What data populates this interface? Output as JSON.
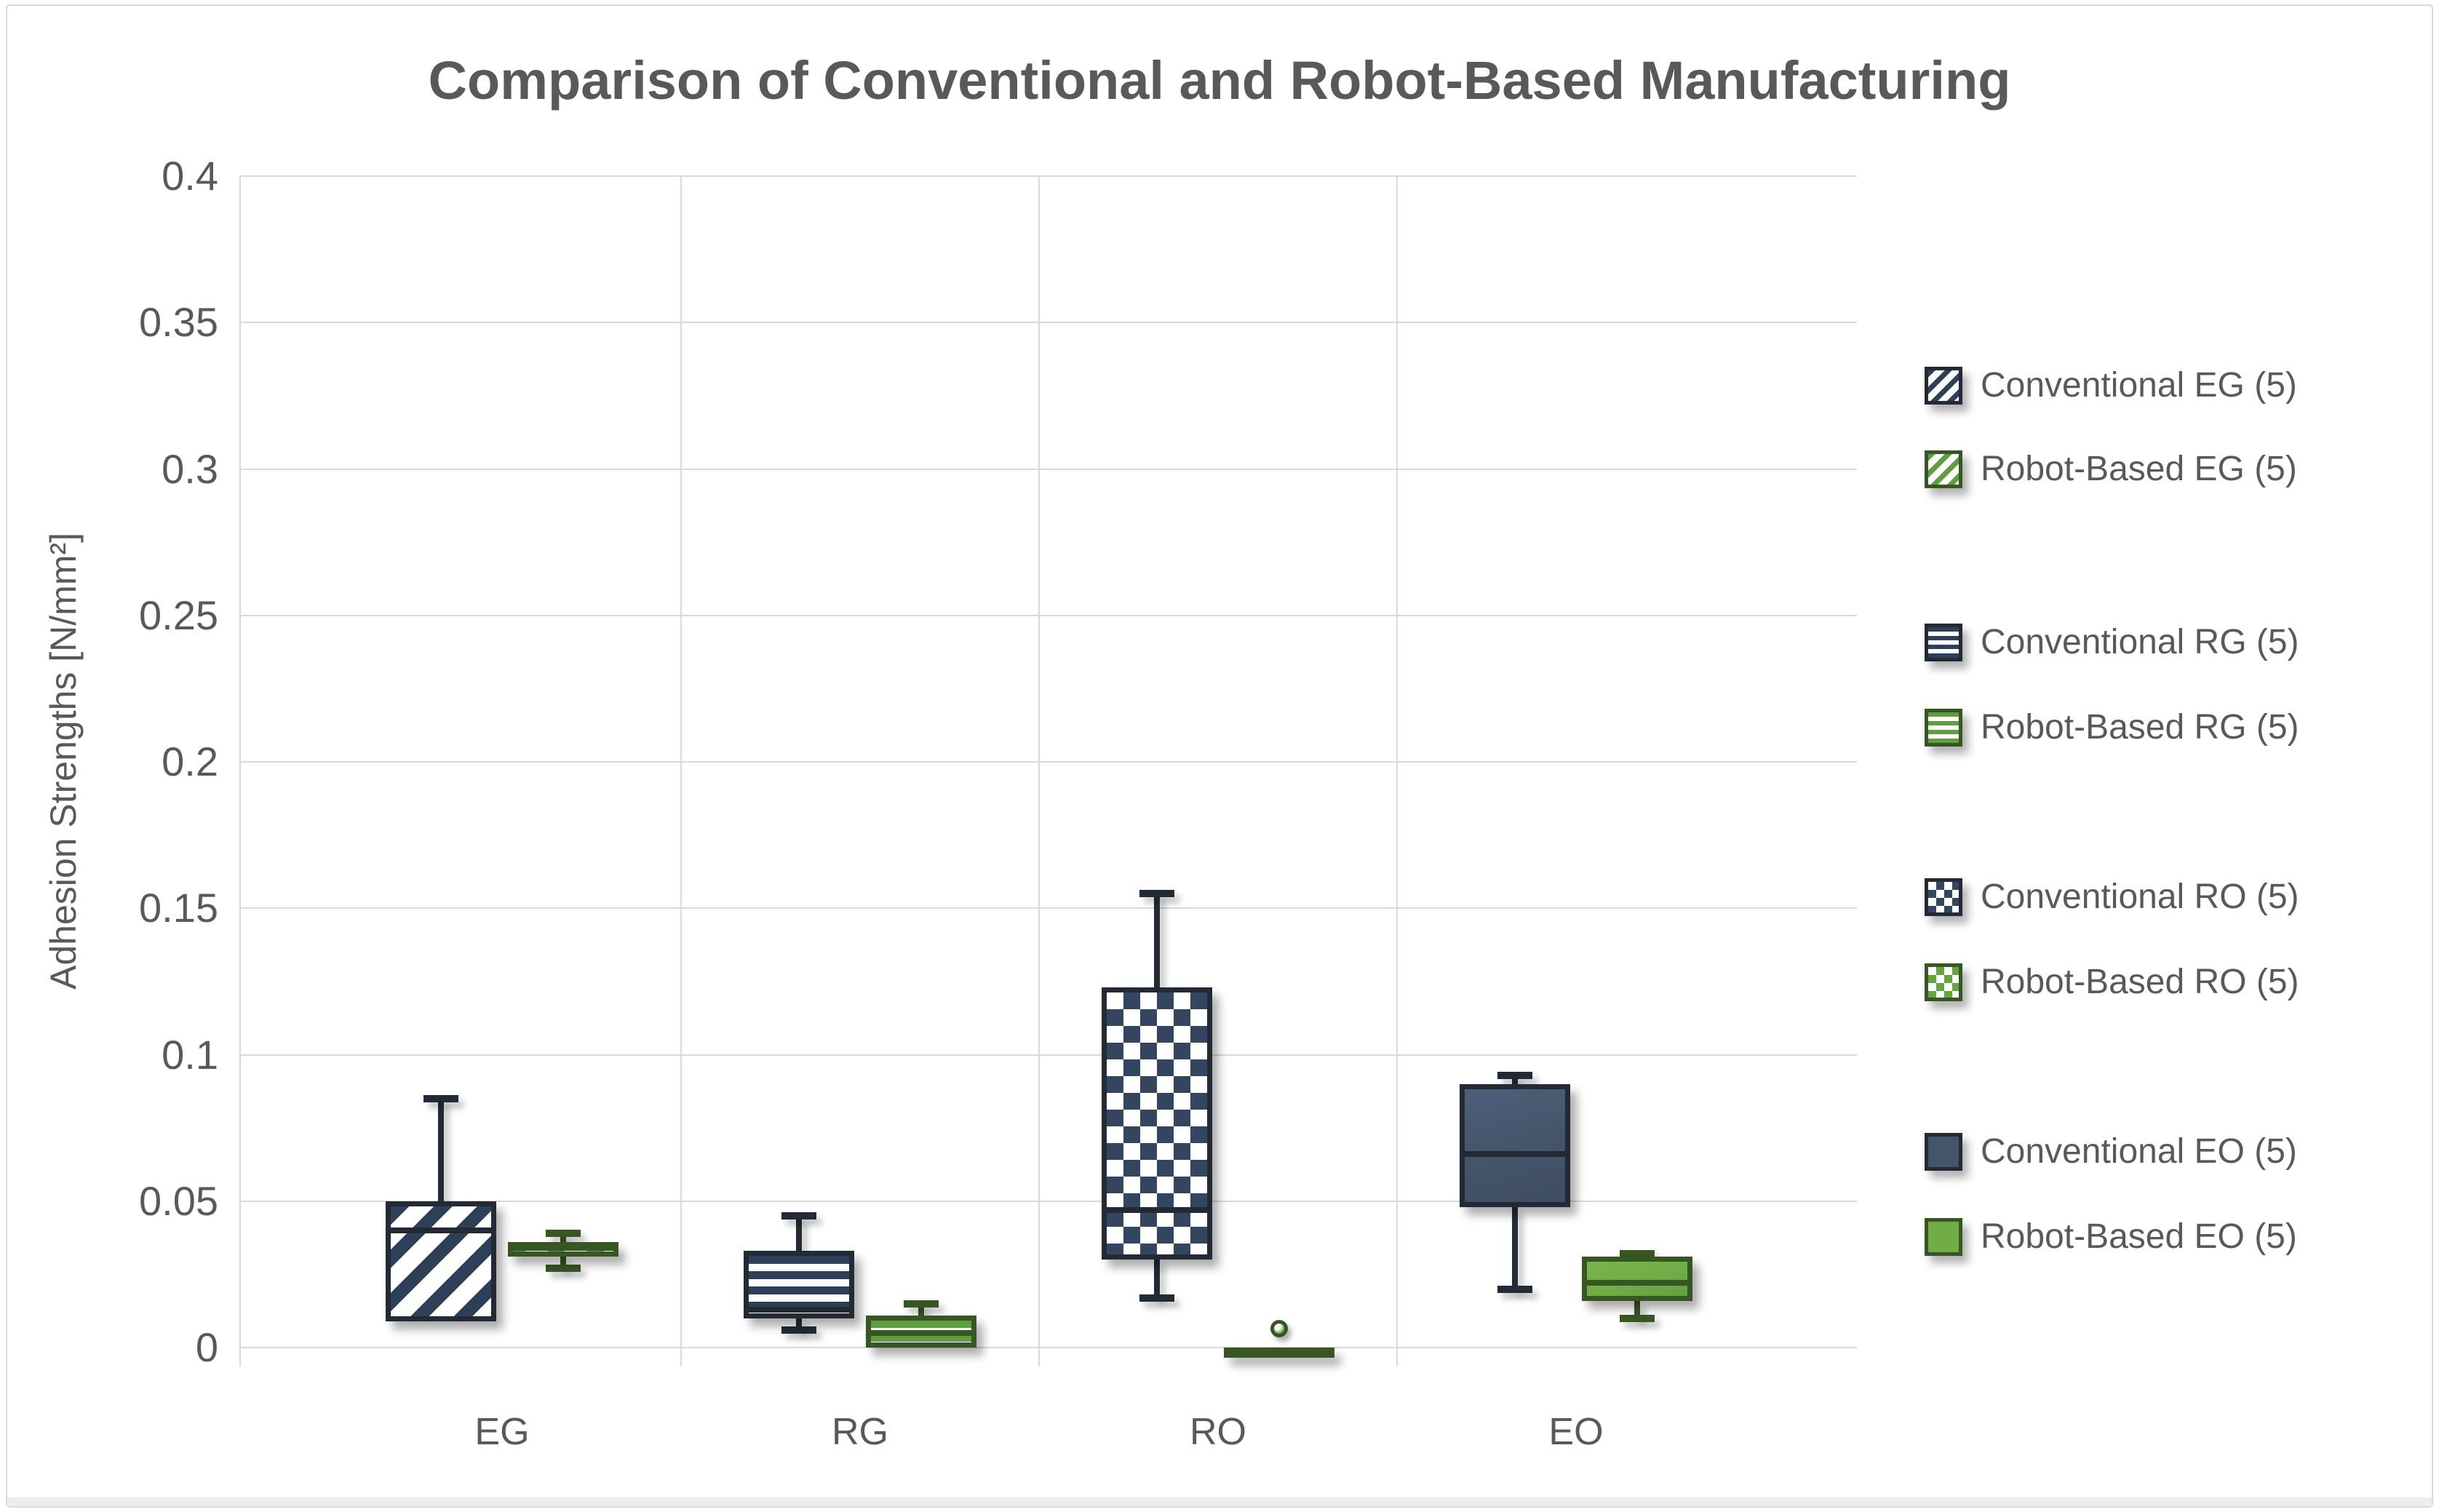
{
  "chart_data": {
    "type": "box",
    "title": "Comparison of Conventional and Robot-Based Manufacturing",
    "ylabel": "Adhesion Strengths [N/mm²]",
    "xlabel": "",
    "ylim": [
      0,
      0.4
    ],
    "ytick_step": 0.05,
    "ytick_labels": [
      "0",
      "0.05",
      "0.1",
      "0.15",
      "0.2",
      "0.25",
      "0.3",
      "0.35",
      "0.4"
    ],
    "grid": true,
    "legend_position": "right",
    "categories": [
      "EG",
      "RG",
      "RO",
      "EO"
    ],
    "series": [
      {
        "name": "Conventional EG (5)",
        "category": "EG",
        "variant": "conventional",
        "pattern": "diagonal",
        "color_key": "navy",
        "min": 0.009,
        "q1": 0.009,
        "median": 0.04,
        "q3": 0.05,
        "max": 0.085,
        "outliers": []
      },
      {
        "name": "Robot-Based EG (5)",
        "category": "EG",
        "variant": "robot",
        "pattern": "diagonal",
        "color_key": "green",
        "min": 0.027,
        "q1": 0.031,
        "median": 0.034,
        "q3": 0.036,
        "max": 0.039,
        "outliers": []
      },
      {
        "name": "Conventional RG (5)",
        "category": "RG",
        "variant": "conventional",
        "pattern": "horizontal",
        "color_key": "navy",
        "min": 0.006,
        "q1": 0.01,
        "median": 0.013,
        "q3": 0.033,
        "max": 0.045,
        "outliers": []
      },
      {
        "name": "Robot-Based RG (5)",
        "category": "RG",
        "variant": "robot",
        "pattern": "horizontal",
        "color_key": "green",
        "min": 0.0,
        "q1": 0.0,
        "median": 0.005,
        "q3": 0.011,
        "max": 0.015,
        "outliers": []
      },
      {
        "name": "Conventional RO (5)",
        "category": "RO",
        "variant": "conventional",
        "pattern": "checker",
        "color_key": "navy",
        "min": 0.017,
        "q1": 0.03,
        "median": 0.047,
        "q3": 0.123,
        "max": 0.155,
        "outliers": []
      },
      {
        "name": "Robot-Based RO (5)",
        "category": "RO",
        "variant": "robot",
        "pattern": "checker",
        "color_key": "green",
        "min": 0.0,
        "q1": 0.0,
        "median": 0.0,
        "q3": 0.0,
        "max": 0.0,
        "outliers": [
          0.0065
        ]
      },
      {
        "name": "Conventional EO (5)",
        "category": "EO",
        "variant": "conventional",
        "pattern": "solid",
        "color_key": "navy",
        "min": 0.02,
        "q1": 0.048,
        "median": 0.066,
        "q3": 0.09,
        "max": 0.093,
        "outliers": []
      },
      {
        "name": "Robot-Based EO (5)",
        "category": "EO",
        "variant": "robot",
        "pattern": "solid",
        "color_key": "green",
        "min": 0.01,
        "q1": 0.016,
        "median": 0.022,
        "q3": 0.031,
        "max": 0.032,
        "outliers": []
      }
    ],
    "colors": {
      "navy_fill": "#44546A",
      "navy_pattern": "#2E4057",
      "navy_border": "#222A35",
      "green_fill": "#70AD47",
      "green_pattern": "#5E9E3E",
      "green_border": "#375623",
      "gridline": "#D9D9D9",
      "text": "#595959"
    }
  }
}
